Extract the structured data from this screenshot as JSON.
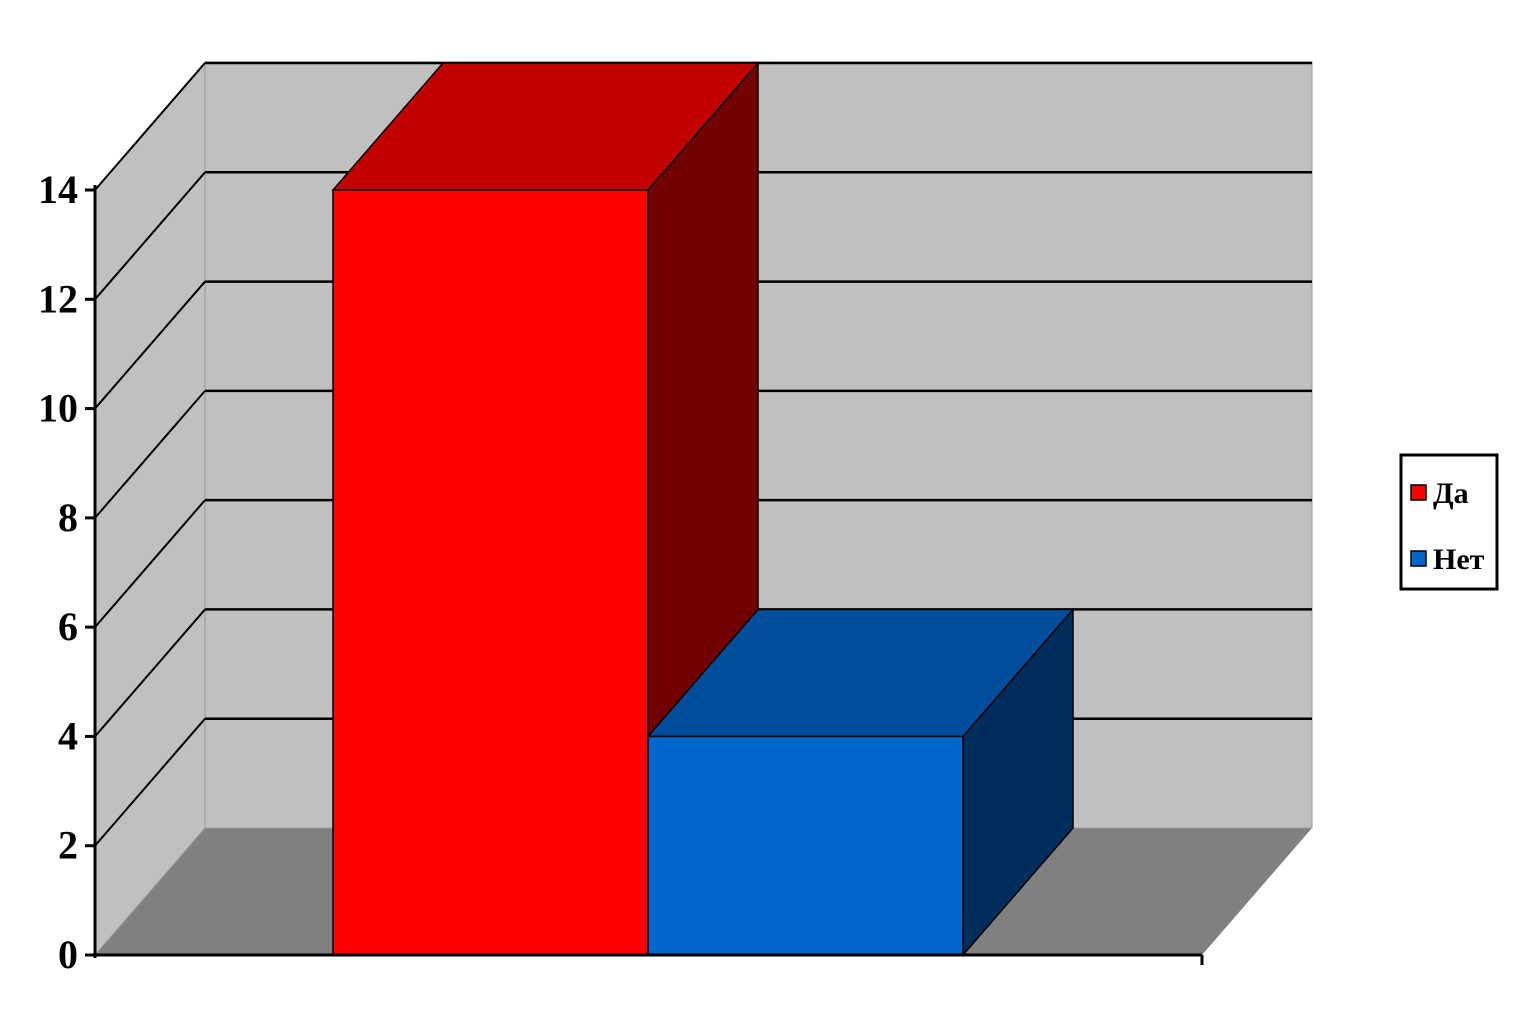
{
  "chart_data": {
    "type": "bar",
    "title": "",
    "xlabel": "",
    "ylabel": "",
    "categories": [
      ""
    ],
    "series": [
      {
        "name": "Да",
        "values": [
          14
        ],
        "color": "#ff0000"
      },
      {
        "name": "Нет",
        "values": [
          4
        ],
        "color": "#0066cc"
      }
    ],
    "ylim": [
      0,
      14
    ],
    "yticks": [
      "0",
      "2",
      "4",
      "6",
      "8",
      "10",
      "12",
      "14"
    ],
    "grid": true,
    "three_d": true,
    "legend_position": "right",
    "wall_color": "#c0c0c0",
    "floor_color": "#808080"
  }
}
